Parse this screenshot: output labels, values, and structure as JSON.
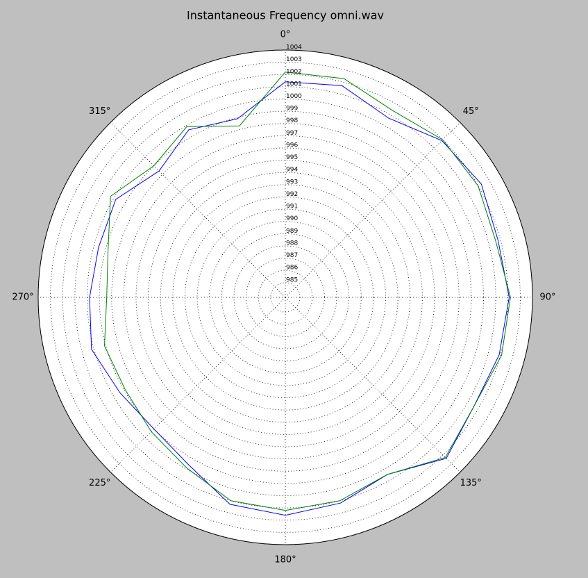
{
  "chart_data": {
    "type": "polar",
    "title": "Instantaneous Frequency  omni.wav",
    "theta": [
      0,
      15,
      30,
      45,
      60,
      75,
      90,
      105,
      120,
      135,
      150,
      165,
      180,
      195,
      210,
      225,
      240,
      255,
      270,
      285,
      300,
      315,
      330,
      345
    ],
    "theta_direction": "clockwise",
    "theta_zero": "top",
    "series": [
      {
        "color": "#0000ff",
        "values": [
          1001.4,
          1001.7,
          1000.7,
          1001.9,
          1002.3,
          1001.8,
          1002.1,
          1001.9,
          1001.6,
          1002.4,
          1000.5,
          1001.2,
          1001.6,
          1001.3,
          999.6,
          999.0,
          999.4,
          1000.2,
          999.8,
          999.6,
          999.8,
          998.4,
          999.6,
          998.9
        ]
      },
      {
        "color": "#008000",
        "values": [
          1002.2,
          1002.3,
          1001.4,
          1002.0,
          1002.0,
          1001.6,
          1002.2,
          1002.1,
          1001.6,
          1002.3,
          1000.5,
          1001.0,
          1001.2,
          1001.0,
          999.9,
          999.3,
          998.9,
          999.1,
          998.4,
          998.8,
          1000.3,
          999.0,
          999.9,
          998.3
        ]
      }
    ],
    "rlim": [
      983.8,
      1004
    ],
    "rticks": [
      985,
      986,
      987,
      988,
      989,
      990,
      991,
      992,
      993,
      994,
      995,
      996,
      997,
      998,
      999,
      1000,
      1001,
      1002,
      1003,
      1004
    ],
    "thetaticks": [
      {
        "value": 0,
        "label": "0°"
      },
      {
        "value": 45,
        "label": "45°"
      },
      {
        "value": 90,
        "label": "90°"
      },
      {
        "value": 135,
        "label": "135°"
      },
      {
        "value": 180,
        "label": "180°"
      },
      {
        "value": 225,
        "label": "225°"
      },
      {
        "value": 270,
        "label": "270°"
      },
      {
        "value": 315,
        "label": "315°"
      }
    ],
    "grid": true
  }
}
